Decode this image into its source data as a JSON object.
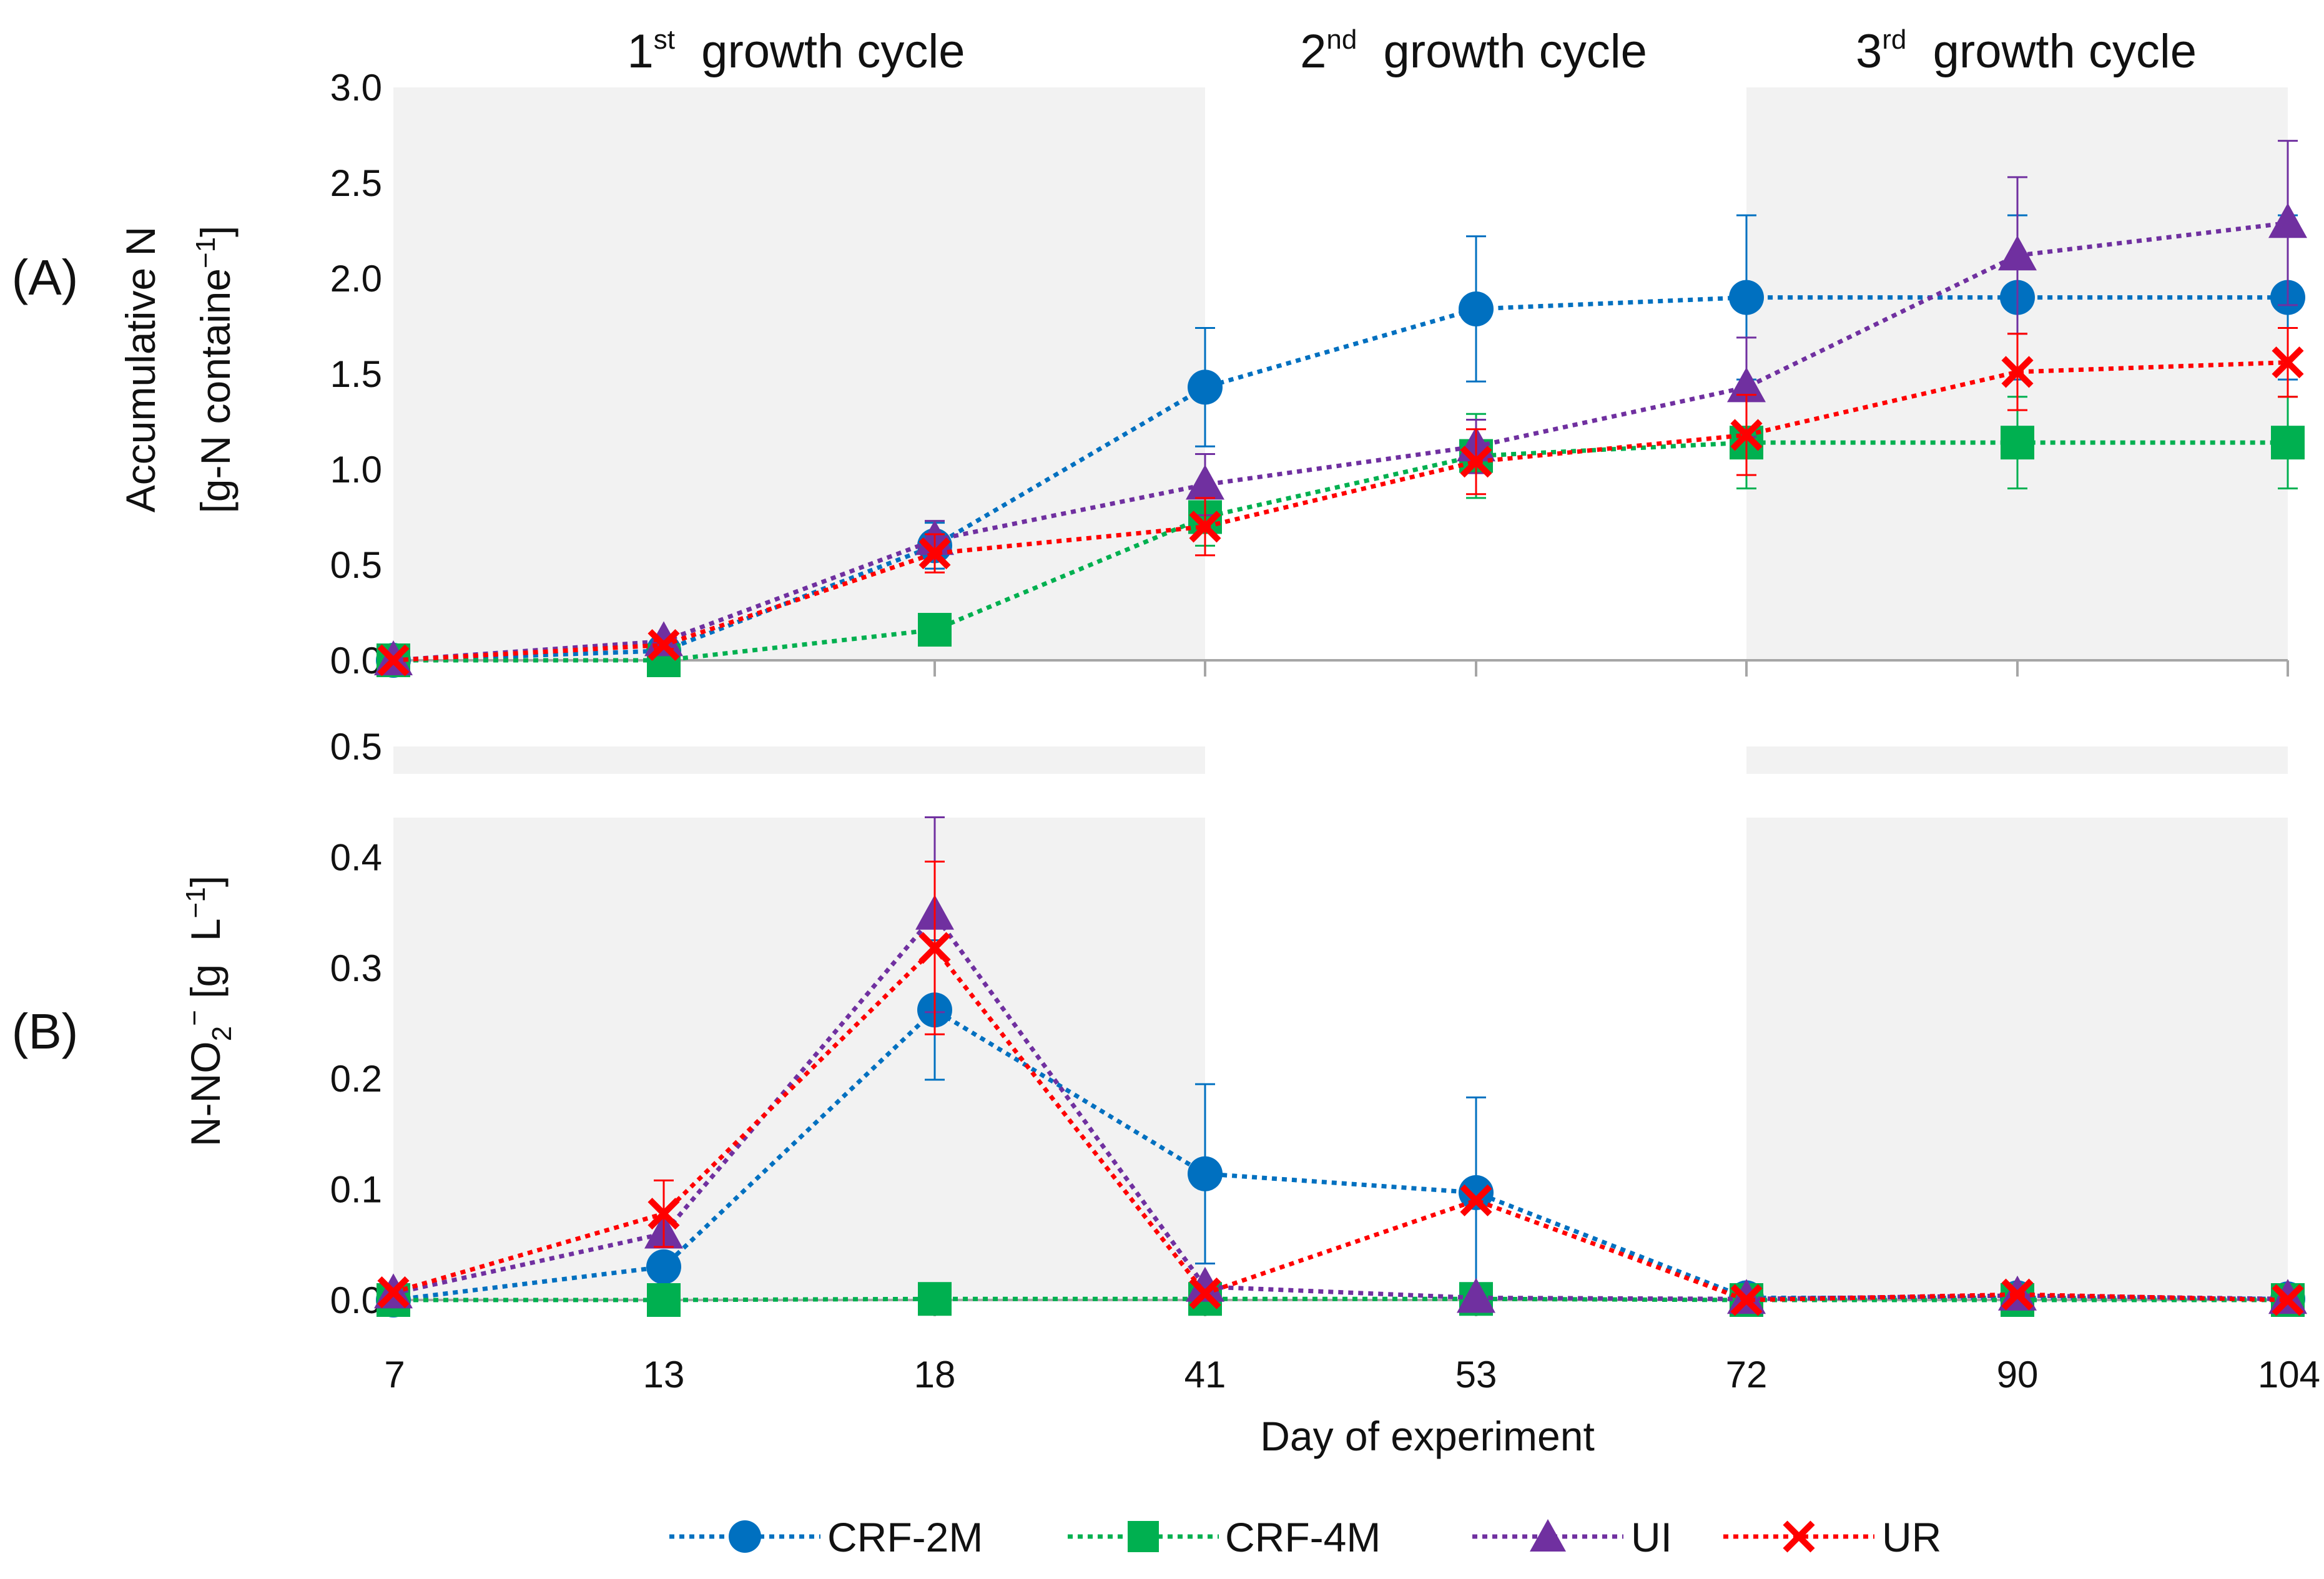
{
  "chart_data": [
    {
      "type": "line",
      "panel_label": "(A)",
      "ylabel_line1": "Accumulative N",
      "ylabel_line2": "[g-N containe",
      "ylabel_line2_sup": "−1",
      "ylabel_line2_end": "]",
      "ylim": [
        0,
        3
      ],
      "yticks": [
        "0.0",
        "0.5",
        "1.0",
        "1.5",
        "2.0",
        "2.5",
        "3.0"
      ],
      "categories": [
        "7",
        "13",
        "18",
        "41",
        "53",
        "72",
        "90",
        "104"
      ],
      "series": [
        {
          "name": "CRF-2M",
          "values": [
            0.0,
            0.05,
            0.6,
            1.43,
            1.84,
            1.9,
            1.9,
            1.9
          ],
          "errors": [
            0.0,
            0.02,
            0.12,
            0.31,
            0.38,
            0.43,
            0.43,
            0.43
          ]
        },
        {
          "name": "CRF-4M",
          "values": [
            0.0,
            0.0,
            0.16,
            0.75,
            1.07,
            1.14,
            1.14,
            1.14
          ],
          "errors": [
            0.0,
            0.0,
            0.02,
            0.15,
            0.22,
            0.24,
            0.24,
            0.24
          ]
        },
        {
          "name": "UI",
          "values": [
            0.0,
            0.1,
            0.63,
            0.92,
            1.12,
            1.43,
            2.12,
            2.29
          ],
          "errors": [
            0.0,
            0.02,
            0.1,
            0.16,
            0.14,
            0.26,
            0.41,
            0.43
          ]
        },
        {
          "name": "UR",
          "values": [
            0.0,
            0.08,
            0.56,
            0.7,
            1.04,
            1.18,
            1.51,
            1.56
          ],
          "errors": [
            0.0,
            0.02,
            0.1,
            0.15,
            0.17,
            0.21,
            0.2,
            0.18
          ]
        }
      ]
    },
    {
      "type": "line",
      "panel_label": "(B)",
      "ylabel_pre": "N-NO",
      "ylabel_sub": "2",
      "ylabel_sup": "−",
      "ylabel_post": " [g  L",
      "ylabel_post_sup": "−1",
      "ylabel_end": "]",
      "xlabel": "Day of experiment",
      "ylim": [
        0,
        0.5
      ],
      "yticks": [
        "0.0",
        "0.1",
        "0.2",
        "0.3",
        "0.4",
        "0.5"
      ],
      "categories": [
        "7",
        "13",
        "18",
        "41",
        "53",
        "72",
        "90",
        "104"
      ],
      "series": [
        {
          "name": "CRF-2M",
          "values": [
            0.0,
            0.03,
            0.262,
            0.114,
            0.097,
            0.002,
            0.002,
            0.001
          ],
          "errors": [
            0.0,
            0.01,
            0.063,
            0.081,
            0.086,
            0.0,
            0.0,
            0.0
          ]
        },
        {
          "name": "CRF-4M",
          "values": [
            0.0,
            0.0,
            0.001,
            0.001,
            0.001,
            0.0,
            0.0,
            0.0
          ],
          "errors": [
            0.0,
            0.0,
            0.0,
            0.0,
            0.0,
            0.0,
            0.0,
            0.0
          ]
        },
        {
          "name": "UI",
          "values": [
            0.006,
            0.06,
            0.348,
            0.012,
            0.002,
            0.001,
            0.004,
            0.001
          ],
          "errors": [
            0.0,
            0.012,
            0.088,
            0.0,
            0.0,
            0.0,
            0.0,
            0.0
          ]
        },
        {
          "name": "UR",
          "values": [
            0.007,
            0.078,
            0.318,
            0.006,
            0.09,
            0.0,
            0.005,
            0.0
          ],
          "errors": [
            0.0,
            0.03,
            0.078,
            0.0,
            0.0,
            0.0,
            0.0,
            0.0
          ]
        }
      ]
    }
  ],
  "cycles": [
    {
      "pre": "1",
      "sup": "st",
      "post": "  growth cycle"
    },
    {
      "pre": "2",
      "sup": "nd",
      "post": "  growth cycle"
    },
    {
      "pre": "3",
      "sup": "rd",
      "post": "  growth cycle"
    }
  ],
  "legend": [
    {
      "name": "CRF-2M",
      "marker": "circle",
      "color": "#0070C0"
    },
    {
      "name": "CRF-4M",
      "marker": "square",
      "color": "#00B050"
    },
    {
      "name": "UI",
      "marker": "triangle",
      "color": "#7030A0"
    },
    {
      "name": "UR",
      "marker": "cross",
      "color": "#FF0000"
    }
  ],
  "colors": {
    "CRF-2M": "#0070C0",
    "CRF-4M": "#00B050",
    "UI": "#7030A0",
    "UR": "#FF0000",
    "shade": "#F2F2F2",
    "axis": "#A6A6A6"
  }
}
